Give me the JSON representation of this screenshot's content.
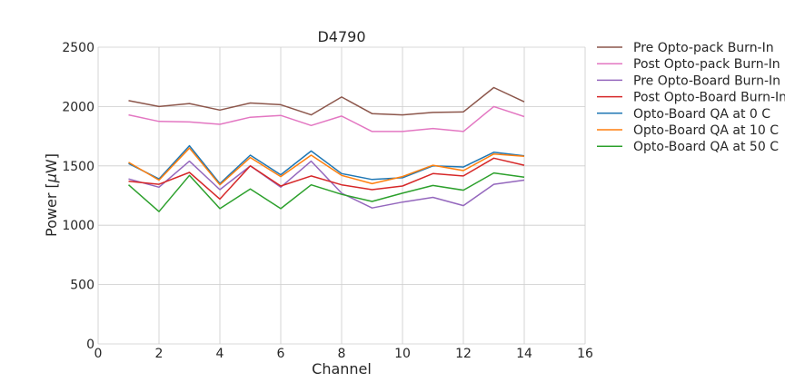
{
  "chart_data": {
    "type": "line",
    "title": "D4790",
    "xlabel": "Channel",
    "ylabel_prefix": "Power [",
    "ylabel_unit_symbol": "μ",
    "ylabel_suffix": "W]",
    "xlim": [
      0,
      16
    ],
    "ylim": [
      0,
      2500
    ],
    "xticks": [
      0,
      2,
      4,
      6,
      8,
      10,
      12,
      14,
      16
    ],
    "yticks": [
      0,
      500,
      1000,
      1500,
      2000,
      2500
    ],
    "grid": true,
    "legend_position": "outside-top-right",
    "x": [
      1,
      2,
      3,
      4,
      5,
      6,
      7,
      8,
      9,
      10,
      11,
      12,
      13,
      14
    ],
    "series": [
      {
        "name": "Pre Opto-pack Burn-In",
        "color": "#8c564b",
        "values": [
          2050,
          2000,
          2025,
          1970,
          2030,
          2015,
          1930,
          2080,
          1940,
          1930,
          1950,
          1955,
          2160,
          2040
        ]
      },
      {
        "name": "Post Opto-pack Burn-In",
        "color": "#e377c2",
        "values": [
          1930,
          1875,
          1870,
          1850,
          1910,
          1925,
          1840,
          1920,
          1790,
          1790,
          1815,
          1790,
          2000,
          1915
        ]
      },
      {
        "name": "Pre Opto-Board Burn-In",
        "color": "#9467bd",
        "values": [
          1390,
          1320,
          1540,
          1300,
          1500,
          1320,
          1540,
          1270,
          1145,
          1195,
          1235,
          1165,
          1345,
          1380
        ]
      },
      {
        "name": "Post Opto-Board Burn-In",
        "color": "#d62728",
        "values": [
          1370,
          1345,
          1445,
          1220,
          1500,
          1330,
          1415,
          1340,
          1300,
          1330,
          1435,
          1415,
          1565,
          1505
        ]
      },
      {
        "name": "Opto-Board QA at 0 C",
        "color": "#1f77b4",
        "values": [
          1520,
          1390,
          1670,
          1350,
          1590,
          1425,
          1625,
          1435,
          1385,
          1400,
          1500,
          1490,
          1615,
          1585
        ]
      },
      {
        "name": "Opto-Board QA at 10 C",
        "color": "#ff7f0e",
        "values": [
          1530,
          1380,
          1650,
          1340,
          1570,
          1410,
          1590,
          1420,
          1350,
          1410,
          1505,
          1460,
          1600,
          1580
        ]
      },
      {
        "name": "Opto-Board QA at 50 C",
        "color": "#2ca02c",
        "values": [
          1340,
          1115,
          1420,
          1140,
          1305,
          1140,
          1340,
          1260,
          1200,
          1270,
          1335,
          1295,
          1440,
          1405
        ]
      }
    ]
  }
}
